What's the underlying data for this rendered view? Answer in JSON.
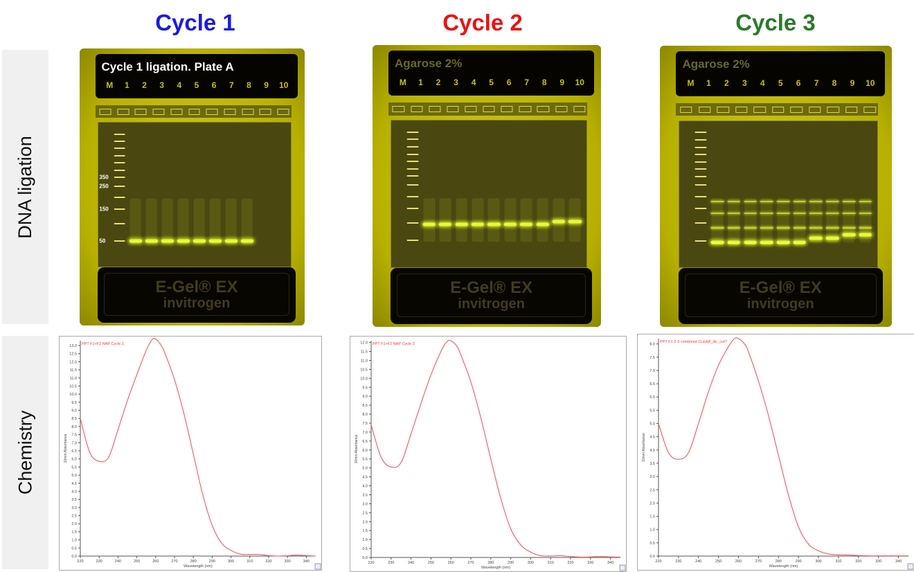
{
  "titles": [
    {
      "text": "Cycle 1",
      "color": "#1a1ae6"
    },
    {
      "text": "Cycle 2",
      "color": "#ee1111"
    },
    {
      "text": "Cycle 3",
      "color": "#2a7a2a"
    }
  ],
  "row_labels": [
    "DNA ligation",
    "Chemistry"
  ],
  "gels": [
    {
      "header": "Cycle 1 ligation. Plate A",
      "header_color": "#ffffff",
      "lanes": [
        "M",
        "1",
        "2",
        "3",
        "4",
        "5",
        "6",
        "7",
        "8",
        "9",
        "10"
      ],
      "ladder_labels": [
        "350",
        "250",
        "150",
        "50"
      ],
      "brand": "E-Gel® EX",
      "maker": "invitrogen"
    },
    {
      "header": "Agarose 2%",
      "header_color": "#6b6822",
      "lanes": [
        "M",
        "1",
        "2",
        "3",
        "4",
        "5",
        "6",
        "7",
        "8",
        "9",
        "10"
      ],
      "brand": "E-Gel® EX",
      "maker": "invitrogen"
    },
    {
      "header": "Agarose 2%",
      "header_color": "#6b6822",
      "lanes": [
        "M",
        "1",
        "2",
        "3",
        "4",
        "5",
        "6",
        "7",
        "8",
        "9",
        "10"
      ],
      "brand": "E-Gel® EX",
      "maker": "invitrogen"
    }
  ],
  "chart_data": [
    {
      "type": "line",
      "legend": "PPT F1+F2 NAP Cycle 1",
      "xlabel": "Wavelength (nm)",
      "ylabel": "10mm Absorbance",
      "xlim": [
        220,
        345
      ],
      "ylim": [
        0,
        13.3
      ],
      "ystep": 0.5,
      "xticks": [
        220,
        230,
        240,
        250,
        260,
        270,
        280,
        290,
        300,
        310,
        320,
        330,
        340
      ],
      "color": "#ff5555",
      "x": [
        220,
        225,
        230,
        235,
        240,
        245,
        250,
        255,
        258,
        260,
        263,
        265,
        270,
        275,
        280,
        285,
        290,
        295,
        300,
        305,
        310,
        315,
        320,
        325,
        330,
        335,
        340,
        345
      ],
      "y": [
        8.5,
        6.4,
        5.85,
        6.1,
        7.8,
        9.6,
        11.2,
        12.7,
        13.35,
        13.4,
        13.0,
        12.5,
        10.9,
        8.8,
        6.3,
        3.8,
        1.9,
        0.8,
        0.35,
        0.12,
        0.1,
        0.1,
        0.03,
        0.0,
        0.02,
        0.06,
        0.03,
        0.0
      ]
    },
    {
      "type": "line",
      "legend": "PPT F1+F2 NAP Cycle 2",
      "xlabel": "Wavelength (nm)",
      "ylabel": "10mm Absorbance",
      "xlim": [
        220,
        345
      ],
      "ylim": [
        0,
        12.1
      ],
      "ystep": 0.5,
      "xticks": [
        220,
        230,
        240,
        250,
        260,
        270,
        280,
        290,
        300,
        310,
        320,
        330,
        340
      ],
      "color": "#ff5555",
      "x": [
        220,
        225,
        230,
        235,
        240,
        245,
        250,
        255,
        258,
        260,
        263,
        265,
        270,
        275,
        280,
        285,
        290,
        295,
        300,
        305,
        310,
        315,
        320,
        325,
        330,
        335,
        340,
        345
      ],
      "y": [
        7.4,
        5.6,
        5.05,
        5.3,
        6.9,
        8.6,
        10.2,
        11.5,
        12.05,
        12.1,
        11.8,
        11.3,
        9.8,
        7.8,
        5.5,
        3.3,
        1.6,
        0.7,
        0.3,
        0.1,
        0.08,
        0.1,
        0.05,
        0.02,
        0.03,
        0.05,
        0.03,
        0.02
      ]
    },
    {
      "type": "line",
      "legend": "PPT F1-2-3 combined CLEAR_AL_cut?",
      "xlabel": "Wavelength (nm)",
      "ylabel": "10mm Absorbance",
      "xlim": [
        220,
        345
      ],
      "ylim": [
        0,
        8.2
      ],
      "ystep": 0.5,
      "xticks": [
        220,
        230,
        240,
        250,
        260,
        270,
        280,
        290,
        300,
        310,
        320,
        330,
        340
      ],
      "color": "#ff5555",
      "x": [
        220,
        225,
        230,
        235,
        240,
        245,
        250,
        255,
        258,
        260,
        263,
        265,
        270,
        275,
        280,
        285,
        290,
        295,
        300,
        305,
        310,
        315,
        320,
        325,
        330,
        335,
        340,
        345
      ],
      "y": [
        5.0,
        3.9,
        3.65,
        3.9,
        5.0,
        6.2,
        7.2,
        7.9,
        8.2,
        8.2,
        8.0,
        7.7,
        6.6,
        5.3,
        3.8,
        2.3,
        1.1,
        0.45,
        0.2,
        0.08,
        0.05,
        0.04,
        0.02,
        0.01,
        0.01,
        0.01,
        0.01,
        0.01
      ]
    }
  ]
}
